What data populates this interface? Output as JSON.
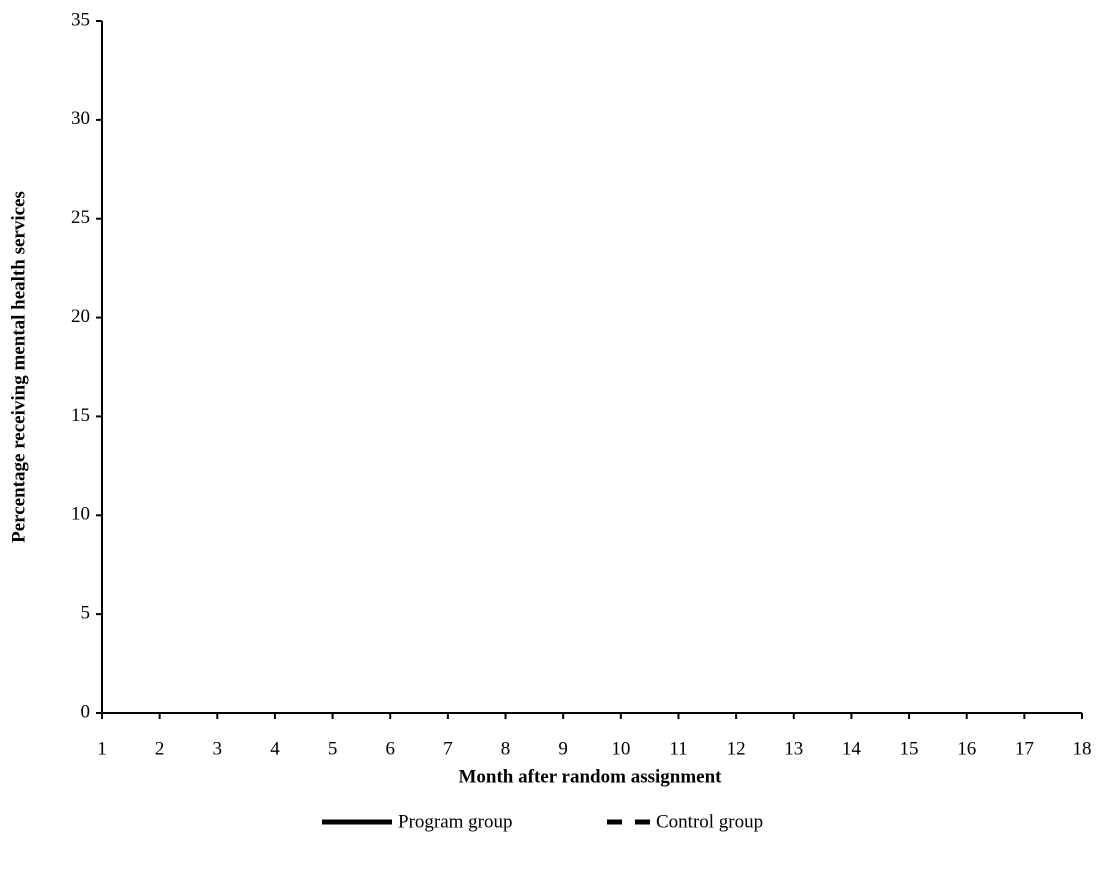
{
  "chart_data": {
    "type": "line",
    "x_label": "Month after random assignment",
    "y_label": "Percentage receiving mental health services",
    "x": [
      1,
      2,
      3,
      4,
      5,
      6,
      7,
      8,
      9,
      10,
      11,
      12,
      13,
      14,
      15,
      16,
      17,
      18
    ],
    "series": [
      {
        "name": "Program group",
        "color": "#000000",
        "style": "solid",
        "values": [
          null,
          null,
          null,
          null,
          null,
          null,
          null,
          null,
          null,
          null,
          null,
          null,
          null,
          null,
          null,
          null,
          null,
          null
        ]
      },
      {
        "name": "Control group",
        "color": "#000000",
        "style": "dashed",
        "values": [
          null,
          null,
          null,
          null,
          null,
          null,
          null,
          null,
          null,
          null,
          null,
          null,
          null,
          null,
          null,
          null,
          null,
          null
        ]
      }
    ],
    "xlim": [
      1,
      18
    ],
    "xticks": [
      1,
      2,
      3,
      4,
      5,
      6,
      7,
      8,
      9,
      10,
      11,
      12,
      13,
      14,
      15,
      16,
      17,
      18
    ],
    "ylim": [
      0,
      35
    ],
    "yticks": [
      0,
      5,
      10,
      15,
      20,
      25,
      30,
      35
    ],
    "grid": false,
    "legend": "bottom"
  }
}
